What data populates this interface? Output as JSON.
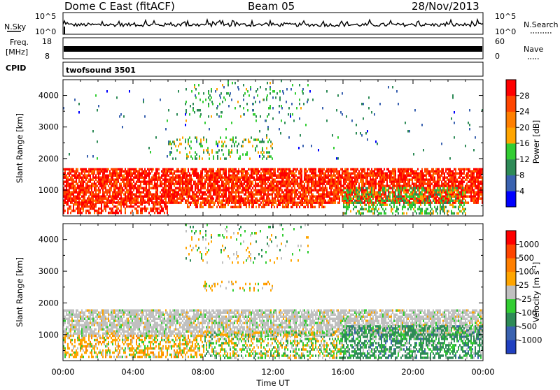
{
  "header": {
    "radar": "Dome C East (fitACF)",
    "beam": "Beam 05",
    "date": "28/Nov/2013"
  },
  "strip_panels": {
    "nsky": {
      "label": "N.Sky",
      "ticks": [
        "10^5",
        "10^0"
      ],
      "right_label": "N.Search",
      "right_ticks": [
        "10^5",
        "10^0"
      ]
    },
    "freq": {
      "label_line1": "Freq.",
      "label_line2": "[MHz]",
      "ticks": [
        "18",
        "8"
      ],
      "right_label": "Nave",
      "right_ticks": [
        "60",
        "0"
      ]
    },
    "cpid": {
      "label": "CPID",
      "program": "twofsound 3501"
    }
  },
  "chart_data": [
    {
      "type": "heatmap",
      "name": "power",
      "ylabel": "Slant Range [km]",
      "xlabel": "",
      "x_ticks": [
        "00:00",
        "04:00",
        "08:00",
        "12:00",
        "16:00",
        "20:00",
        "00:00"
      ],
      "y_ticks": [
        1000,
        2000,
        3000,
        4000
      ],
      "ylim": [
        180,
        4500
      ],
      "xlim_hours": [
        0,
        24
      ],
      "colorbar": {
        "label": "Power [dB]",
        "range": [
          0,
          32
        ],
        "ticks": [
          "4",
          "8",
          "12",
          "16",
          "20",
          "24",
          "28"
        ],
        "colors": [
          "#0000ff",
          "#3a62b0",
          "#2e8b57",
          "#32cd32",
          "#ffa500",
          "#ff7f00",
          "#ff4500",
          "#ff0000"
        ]
      },
      "bands": [
        {
          "t0": 0,
          "t1": 24,
          "r0": 600,
          "r1": 1700,
          "value": 26,
          "density": 0.8
        },
        {
          "t0": 0,
          "t1": 6,
          "r0": 300,
          "r1": 650,
          "value": 26,
          "density": 0.55
        },
        {
          "t0": 7,
          "t1": 15,
          "r0": 500,
          "r1": 700,
          "value": 24,
          "density": 0.55
        },
        {
          "t0": 16,
          "t1": 23,
          "r0": 300,
          "r1": 1100,
          "value": 12,
          "density": 0.45
        },
        {
          "t0": 6,
          "t1": 12,
          "r0": 2000,
          "r1": 2700,
          "value": 12,
          "density": 0.18
        },
        {
          "t0": 7,
          "t1": 14,
          "r0": 3200,
          "r1": 4500,
          "value": 10,
          "density": 0.08
        },
        {
          "t0": 0,
          "t1": 24,
          "r0": 2000,
          "r1": 4300,
          "value": 6,
          "density": 0.015
        }
      ]
    },
    {
      "type": "heatmap",
      "name": "velocity",
      "ylabel": "Slant Range [km]",
      "xlabel": "Time UT",
      "x_ticks": [
        "00:00",
        "04:00",
        "08:00",
        "12:00",
        "16:00",
        "20:00",
        "00:00"
      ],
      "y_ticks": [
        1000,
        2000,
        3000,
        4000
      ],
      "ylim": [
        180,
        4500
      ],
      "xlim_hours": [
        0,
        24
      ],
      "colorbar": {
        "label": "Velocity [m s^-1]",
        "ticks": [
          "1000",
          "500",
          "100",
          "25",
          "-25",
          "-100",
          "-500",
          "-1000"
        ],
        "colors": [
          "#2040c0",
          "#3a62b0",
          "#2e8b57",
          "#32cd32",
          "#c0c0c0",
          "#ffa500",
          "#ff7f00",
          "#ff4500",
          "#ff0000"
        ]
      },
      "bands": [
        {
          "t0": 0,
          "t1": 24,
          "r0": 1000,
          "r1": 1800,
          "value": "ground",
          "density": 0.75
        },
        {
          "t0": 0,
          "t1": 8,
          "r0": 300,
          "r1": 1000,
          "value": "neg",
          "density": 0.5
        },
        {
          "t0": 8,
          "t1": 16,
          "r0": 300,
          "r1": 1100,
          "value": "mixed",
          "density": 0.45
        },
        {
          "t0": 16,
          "t1": 24,
          "r0": 300,
          "r1": 1300,
          "value": "pos",
          "density": 0.6
        },
        {
          "t0": 8,
          "t1": 12,
          "r0": 2400,
          "r1": 2700,
          "value": "neg",
          "density": 0.2
        },
        {
          "t0": 7,
          "t1": 14,
          "r0": 3300,
          "r1": 4500,
          "value": "mixed",
          "density": 0.07
        }
      ]
    }
  ]
}
